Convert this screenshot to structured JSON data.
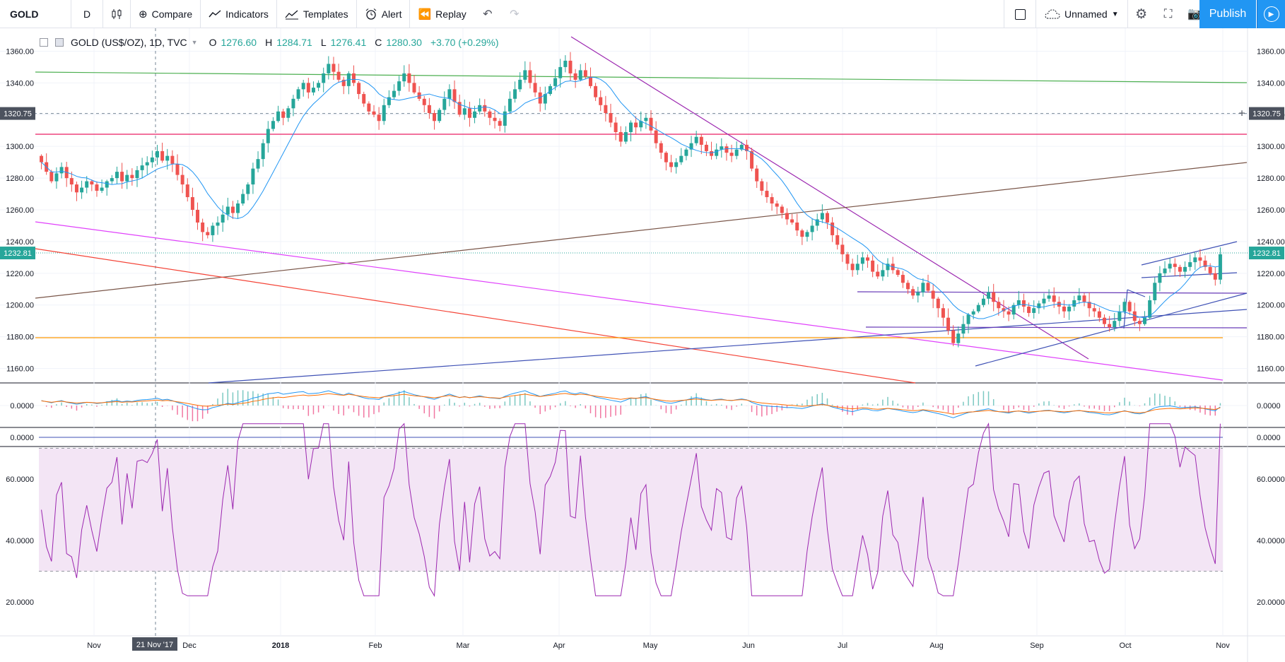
{
  "toolbar": {
    "symbol": "GOLD",
    "interval": "D",
    "compare_label": "Compare",
    "indicators_label": "Indicators",
    "templates_label": "Templates",
    "alert_label": "Alert",
    "replay_label": "Replay",
    "layout_name": "Unnamed",
    "publish_label": "Publish"
  },
  "legend": {
    "title": "GOLD (US$/OZ), 1D, TVC",
    "o_label": "O",
    "o_value": "1276.60",
    "h_label": "H",
    "h_value": "1284.71",
    "l_label": "L",
    "l_value": "1276.41",
    "c_label": "C",
    "c_value": "1280.30",
    "change": "+3.70 (+0.29%)"
  },
  "colors": {
    "up": "#26a69a",
    "down": "#ef5350",
    "ma": "#2196f3",
    "rsi": "#9c27b0",
    "rsi_band": "#f3e5f5"
  },
  "crosshair": {
    "date_label": "21 Nov '17",
    "price_label": "1320.75"
  },
  "last_price_label": "1232.81",
  "chart_data": {
    "type": "candlestick",
    "price_ticks": [
      "1360.00",
      "1340.00",
      "1320.00",
      "1300.00",
      "1280.00",
      "1260.00",
      "1240.00",
      "1220.00",
      "1200.00",
      "1180.00",
      "1160.00"
    ],
    "time_ticks": [
      "Nov",
      "Dec",
      "2018",
      "Feb",
      "Mar",
      "Apr",
      "May",
      "Jun",
      "Jul",
      "Aug",
      "Sep",
      "Oct",
      "Nov"
    ],
    "ylim": [
      1150,
      1370
    ],
    "macd_tick": "0.0000",
    "panel2_tick": "0.0000",
    "rsi_ticks": [
      "60.0000",
      "40.0000",
      "20.0000"
    ],
    "rsi_band": [
      30,
      70
    ],
    "closes": [
      1290,
      1284,
      1278,
      1283,
      1287,
      1280,
      1276,
      1271,
      1274,
      1278,
      1276,
      1272,
      1274,
      1278,
      1280,
      1284,
      1278,
      1282,
      1280,
      1285,
      1288,
      1290,
      1293,
      1297,
      1291,
      1294,
      1289,
      1282,
      1276,
      1268,
      1260,
      1252,
      1246,
      1244,
      1250,
      1252,
      1257,
      1262,
      1258,
      1264,
      1270,
      1276,
      1286,
      1292,
      1302,
      1311,
      1316,
      1322,
      1318,
      1324,
      1330,
      1336,
      1340,
      1334,
      1337,
      1340,
      1346,
      1352,
      1347,
      1342,
      1338,
      1346,
      1340,
      1333,
      1327,
      1322,
      1320,
      1316,
      1326,
      1331,
      1335,
      1341,
      1346,
      1340,
      1334,
      1330,
      1326,
      1321,
      1316,
      1323,
      1330,
      1336,
      1328,
      1320,
      1324,
      1318,
      1322,
      1326,
      1322,
      1318,
      1316,
      1313,
      1322,
      1330,
      1336,
      1342,
      1348,
      1340,
      1334,
      1327,
      1333,
      1338,
      1343,
      1350,
      1354,
      1346,
      1342,
      1348,
      1344,
      1338,
      1331,
      1326,
      1321,
      1315,
      1309,
      1303,
      1309,
      1315,
      1312,
      1316,
      1318,
      1310,
      1302,
      1296,
      1290,
      1287,
      1290,
      1294,
      1298,
      1302,
      1306,
      1301,
      1297,
      1294,
      1298,
      1300,
      1296,
      1294,
      1298,
      1301,
      1297,
      1286,
      1278,
      1272,
      1268,
      1264,
      1262,
      1258,
      1254,
      1252,
      1247,
      1243,
      1246,
      1250,
      1254,
      1258,
      1252,
      1244,
      1238,
      1232,
      1226,
      1222,
      1226,
      1230,
      1228,
      1221,
      1218,
      1222,
      1226,
      1222,
      1219,
      1214,
      1210,
      1206,
      1208,
      1214,
      1209,
      1204,
      1198,
      1192,
      1184,
      1176,
      1182,
      1188,
      1194,
      1196,
      1200,
      1204,
      1208,
      1202,
      1198,
      1196,
      1194,
      1200,
      1203,
      1199,
      1195,
      1198,
      1201,
      1204,
      1206,
      1202,
      1199,
      1196,
      1199,
      1203,
      1206,
      1202,
      1198,
      1196,
      1192,
      1188,
      1186,
      1190,
      1196,
      1202,
      1196,
      1190,
      1188,
      1192,
      1203,
      1214,
      1220,
      1223,
      1226,
      1224,
      1221,
      1224,
      1227,
      1230,
      1228,
      1224,
      1220,
      1216,
      1232
    ]
  }
}
